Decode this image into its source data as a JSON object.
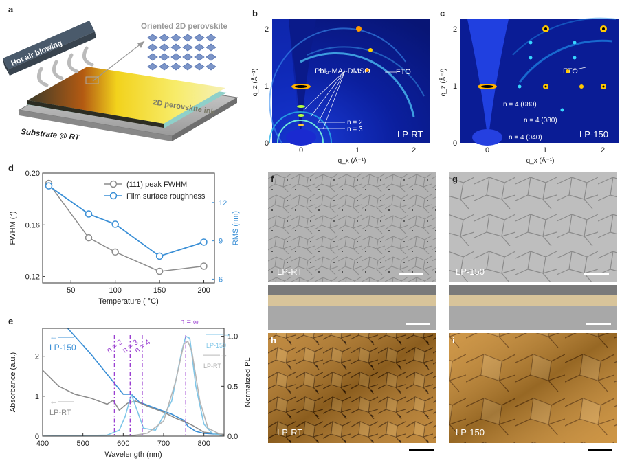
{
  "panels": {
    "a": "a",
    "b": "b",
    "c": "c",
    "d": "d",
    "e": "e",
    "f": "f",
    "g": "g",
    "h": "h",
    "i": "i"
  },
  "schematic": {
    "hot_air": "Hot air blowing",
    "oriented": "Oriented 2D perovskite",
    "ink": "2D perovskite ink",
    "substrate": "Substrate @ RT"
  },
  "giwaxs_b": {
    "ylabel": "q_z (Å⁻¹)",
    "xlabel": "q_x (Å⁻¹)",
    "annot_pbi2": "PbI₂-MAI-DMSO",
    "annot_fto": "FTO",
    "annot_n2": "n = 2",
    "annot_n3": "n = 3",
    "sample": "LP-RT",
    "xticks": [
      "0",
      "1",
      "2"
    ],
    "yticks": [
      "0",
      "1",
      "2"
    ]
  },
  "giwaxs_c": {
    "ylabel": "q_z (Å⁻¹)",
    "xlabel": "q_x (Å⁻¹)",
    "annot_fto": "FTO",
    "annot_1": "n = 4 (080)",
    "annot_2": "n = 4 (080)",
    "annot_3": "n = 4 (040)",
    "sample": "LP-150",
    "xticks": [
      "0",
      "1",
      "2"
    ],
    "yticks": [
      "0",
      "1",
      "2"
    ]
  },
  "micro_labels": {
    "f": "LP-RT",
    "g": "LP-150",
    "h": "LP-RT",
    "i": "LP-150"
  },
  "colors": {
    "gray_series": "#8c8c8c",
    "blue_series": "#3a8fd6",
    "light_blue": "#7fc6e8",
    "purple": "#9a3fd1"
  },
  "chart_data": [
    {
      "type": "line",
      "panel": "d",
      "xlabel": "Temperature ( °C)",
      "ylabel": "FWHM (°)",
      "ylabel_right": "RMS (nm)",
      "x": [
        25,
        70,
        100,
        150,
        200
      ],
      "xticks": [
        "50",
        "100",
        "150",
        "200"
      ],
      "xlim": [
        18,
        212
      ],
      "ylim": [
        0.115,
        0.2
      ],
      "yticks": [
        "0.12",
        "0.16",
        "0.20"
      ],
      "ylim_right": [
        5.7,
        14.3
      ],
      "yticks_right": [
        "6",
        "9",
        "12"
      ],
      "legend_position": "top-right",
      "series": [
        {
          "name": "(111) peak FWHM",
          "axis": "left",
          "values": [
            0.192,
            0.15,
            0.139,
            0.124,
            0.128
          ]
        },
        {
          "name": "Film surface roughness",
          "axis": "right",
          "values": [
            13.3,
            11.1,
            10.3,
            7.8,
            8.9
          ]
        }
      ]
    },
    {
      "type": "line",
      "panel": "e",
      "xlabel": "Wavelength (nm)",
      "ylabel": "Absorbance (a.u.)",
      "ylabel_right": "Normalized PL",
      "xlim": [
        400,
        850
      ],
      "xticks": [
        "400",
        "500",
        "600",
        "700",
        "800"
      ],
      "ylim": [
        0,
        2.7
      ],
      "yticks": [
        "0",
        "1",
        "2"
      ],
      "ylim_right": [
        0,
        1.08
      ],
      "yticks_right": [
        "0.0",
        "0.5",
        "1.0"
      ],
      "phase_lines": [
        {
          "label": "n = 2",
          "x": 578
        },
        {
          "label": "n = 3",
          "x": 617
        },
        {
          "label": "n = 4",
          "x": 647
        },
        {
          "label": "n = ∞",
          "x": 755
        }
      ],
      "series": [
        {
          "name": "LP-150",
          "kind": "absorbance",
          "x": [
            400,
            440,
            480,
            520,
            560,
            580,
            600,
            620,
            640,
            680,
            720,
            750,
            760,
            780,
            800,
            850
          ],
          "values": [
            3.3,
            2.95,
            2.5,
            2.05,
            1.55,
            1.3,
            1.05,
            1.05,
            0.85,
            0.7,
            0.55,
            0.4,
            0.25,
            0.12,
            0.07,
            0.04
          ]
        },
        {
          "name": "LP-RT",
          "kind": "absorbance",
          "x": [
            400,
            410,
            440,
            480,
            520,
            560,
            575,
            590,
            610,
            630,
            660,
            700,
            730,
            755,
            775,
            800,
            850
          ],
          "values": [
            1.65,
            1.55,
            1.25,
            1.05,
            0.95,
            0.8,
            0.9,
            0.65,
            0.82,
            0.88,
            0.75,
            0.6,
            0.45,
            0.35,
            0.25,
            0.1,
            0.04
          ]
        },
        {
          "name": "LP-150",
          "kind": "PL",
          "x": [
            400,
            560,
            590,
            605,
            620,
            635,
            650,
            680,
            720,
            745,
            755,
            765,
            780,
            800,
            820,
            850
          ],
          "values": [
            0.0,
            0.01,
            0.06,
            0.2,
            0.42,
            0.25,
            0.08,
            0.06,
            0.35,
            0.85,
            1.0,
            0.98,
            0.5,
            0.12,
            0.03,
            0.0
          ]
        },
        {
          "name": "LP-RT",
          "kind": "PL",
          "x": [
            400,
            600,
            630,
            660,
            700,
            730,
            750,
            760,
            770,
            790,
            810,
            850
          ],
          "values": [
            0.0,
            0.0,
            0.01,
            0.03,
            0.15,
            0.55,
            0.92,
            0.95,
            0.85,
            0.35,
            0.08,
            0.0
          ]
        }
      ],
      "legend": [
        {
          "name": "LP-150",
          "side": "left"
        },
        {
          "name": "LP-RT",
          "side": "left"
        },
        {
          "name": "LP-150",
          "side": "right"
        },
        {
          "name": "LP-RT",
          "side": "right"
        }
      ]
    }
  ]
}
